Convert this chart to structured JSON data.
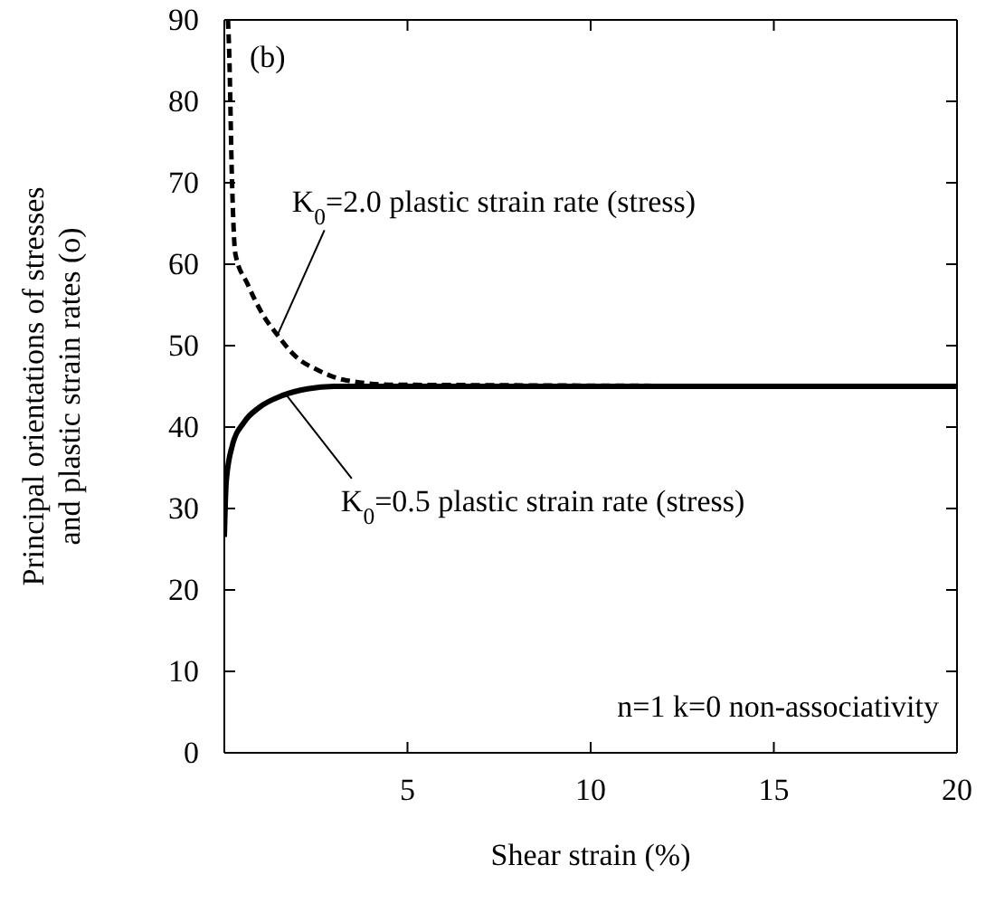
{
  "chart_data": {
    "type": "line",
    "xlabel": "Shear strain (%)",
    "ylabel": "Principal orientations of stresses\nand plastic strain rates (o)",
    "xlim": [
      0,
      20
    ],
    "xticks": [
      5,
      10,
      15,
      20
    ],
    "ylim": [
      0,
      90
    ],
    "yticks": [
      0,
      10,
      20,
      30,
      40,
      50,
      60,
      70,
      80,
      90
    ],
    "grid": false,
    "series": [
      {
        "color": "#000000",
        "line_style": "dashed",
        "x": [
          0.1,
          0.13,
          0.21,
          0.3,
          0.63,
          1.04,
          1.45,
          1.94,
          2.6,
          3.26,
          4.6,
          20
        ],
        "values": [
          90,
          86.5,
          70.2,
          61.3,
          57.6,
          53.9,
          51.3,
          48.7,
          46.9,
          45.8,
          45.2,
          45
        ]
      },
      {
        "color": "#000000",
        "line_style": "solid",
        "x": [
          0,
          0.05,
          0.21,
          0.54,
          0.95,
          1.6,
          2.27,
          3,
          20
        ],
        "values": [
          26.5,
          33.2,
          37.6,
          40.6,
          42.4,
          43.9,
          44.7,
          45,
          45
        ]
      }
    ],
    "annotations": [
      "(b)",
      {
        "text": "K$_{0}$=2.0 plastic strain rate (stress)",
        "x": 1.45,
        "y": 51.3
      },
      {
        "text": "K$_{0}$=0.5 plastic strain rate (stress)",
        "x": 1.7,
        "y": 43.9
      },
      "n=1 k=0 non-associativity"
    ]
  }
}
